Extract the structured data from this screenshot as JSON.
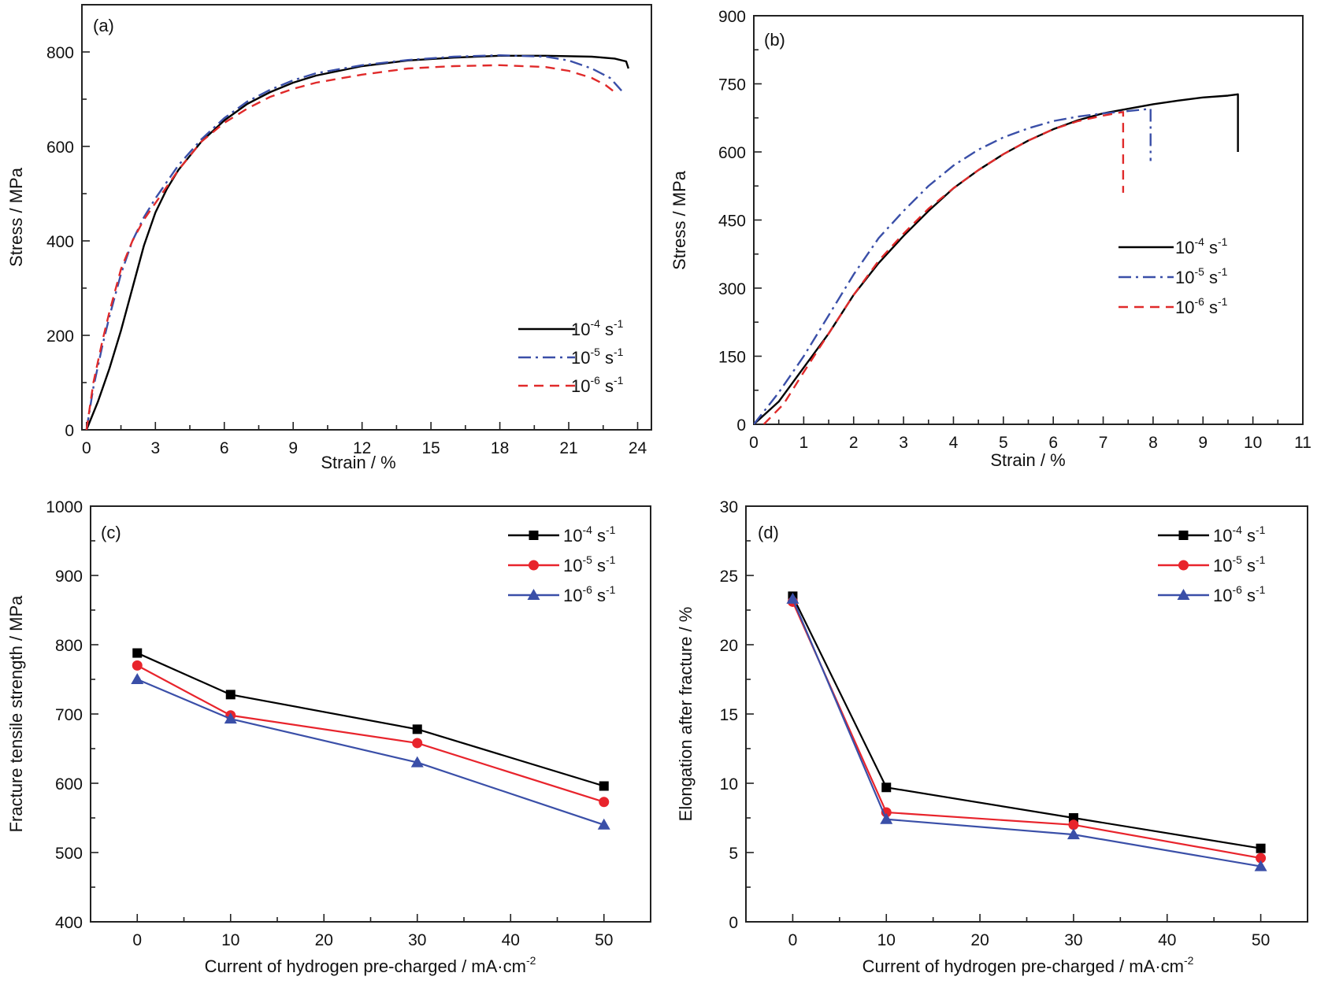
{
  "chart_data": [
    {
      "id": "a",
      "type": "line",
      "panel_label": "(a)",
      "title": "",
      "xlabel": "Strain / %",
      "ylabel": "Stress / MPa",
      "xlim": [
        -0.2,
        24.6
      ],
      "ylim": [
        0,
        900
      ],
      "xticks": [
        0,
        3,
        6,
        9,
        12,
        15,
        18,
        21,
        24
      ],
      "yticks": [
        0,
        200,
        400,
        600,
        800
      ],
      "x_minor_step": 1.5,
      "y_minor_step": 100,
      "grid": false,
      "legend": "bottom-right",
      "series": [
        {
          "name": "10^-4 s^-1",
          "base": "10",
          "exp": "-4",
          "unit": "s",
          "unit_exp": "-1",
          "color": "#000000",
          "dash": "solid",
          "x": [
            0,
            0.5,
            1.0,
            1.5,
            2.0,
            2.5,
            3.0,
            3.5,
            4.0,
            5.0,
            6.0,
            7.0,
            8.0,
            9.0,
            10.0,
            12.0,
            14.0,
            16.0,
            18.0,
            20.0,
            22.0,
            23.0,
            23.5,
            23.6
          ],
          "y": [
            0,
            60,
            130,
            210,
            300,
            390,
            460,
            510,
            550,
            610,
            655,
            690,
            715,
            735,
            750,
            770,
            782,
            788,
            792,
            792,
            790,
            786,
            780,
            765
          ]
        },
        {
          "name": "10^-5 s^-1",
          "base": "10",
          "exp": "-5",
          "unit": "s",
          "unit_exp": "-1",
          "color": "#3a4fa8",
          "dash": "dashdot",
          "x": [
            0,
            0.3,
            0.7,
            1.0,
            1.5,
            2.0,
            2.5,
            3.0,
            4.0,
            5.0,
            6.0,
            7.0,
            8.0,
            9.0,
            10.0,
            12.0,
            14.0,
            16.0,
            18.0,
            20.0,
            21.0,
            22.0,
            22.8,
            23.3
          ],
          "y": [
            0,
            90,
            180,
            240,
            330,
            400,
            450,
            490,
            560,
            615,
            660,
            695,
            720,
            740,
            755,
            772,
            783,
            790,
            793,
            790,
            782,
            765,
            745,
            718
          ]
        },
        {
          "name": "10^-6 s^-1",
          "base": "10",
          "exp": "-6",
          "unit": "s",
          "unit_exp": "-1",
          "color": "#e02a2a",
          "dash": "dashed",
          "x": [
            0,
            0.3,
            0.7,
            1.0,
            1.5,
            2.0,
            2.5,
            3.0,
            4.0,
            5.0,
            6.0,
            7.0,
            8.0,
            9.0,
            10.0,
            12.0,
            14.0,
            16.0,
            18.0,
            20.0,
            21.0,
            22.0,
            22.6,
            23.0
          ],
          "y": [
            0,
            100,
            190,
            250,
            340,
            400,
            445,
            480,
            550,
            610,
            650,
            680,
            705,
            722,
            735,
            752,
            765,
            770,
            772,
            768,
            760,
            745,
            730,
            715
          ]
        }
      ]
    },
    {
      "id": "b",
      "type": "line",
      "panel_label": "(b)",
      "title": "",
      "xlabel": "Strain / %",
      "ylabel": "Stress / MPa",
      "xlim": [
        0,
        11
      ],
      "ylim": [
        0,
        900
      ],
      "xticks": [
        0,
        1,
        2,
        3,
        4,
        5,
        6,
        7,
        8,
        9,
        10,
        11
      ],
      "yticks": [
        0,
        150,
        300,
        450,
        600,
        750,
        900
      ],
      "x_minor_step": 0.5,
      "y_minor_step": 75,
      "grid": false,
      "legend": "center-right",
      "series": [
        {
          "name": "10^-4 s^-1",
          "base": "10",
          "exp": "-4",
          "unit": "s",
          "unit_exp": "-1",
          "color": "#000000",
          "dash": "solid",
          "x": [
            0,
            0.5,
            1.0,
            1.5,
            2.0,
            2.5,
            3.0,
            3.5,
            4.0,
            4.5,
            5.0,
            5.5,
            6.0,
            6.5,
            7.0,
            7.5,
            8.0,
            8.5,
            9.0,
            9.5,
            9.7,
            9.7
          ],
          "y": [
            0,
            50,
            125,
            200,
            285,
            355,
            415,
            470,
            520,
            560,
            595,
            625,
            650,
            670,
            685,
            695,
            705,
            713,
            720,
            724,
            727,
            600
          ]
        },
        {
          "name": "10^-5 s^-1",
          "base": "10",
          "exp": "-5",
          "unit": "s",
          "unit_exp": "-1",
          "color": "#3a4fa8",
          "dash": "dashdot",
          "x": [
            0,
            0.5,
            1.0,
            1.5,
            2.0,
            2.5,
            3.0,
            3.5,
            4.0,
            4.5,
            5.0,
            5.5,
            6.0,
            6.5,
            7.0,
            7.5,
            7.95,
            7.95
          ],
          "y": [
            0,
            70,
            150,
            240,
            330,
            410,
            470,
            525,
            570,
            605,
            632,
            652,
            668,
            678,
            685,
            690,
            695,
            580
          ]
        },
        {
          "name": "10^-6 s^-1",
          "base": "10",
          "exp": "-6",
          "unit": "s",
          "unit_exp": "-1",
          "color": "#e02a2a",
          "dash": "dashed",
          "x": [
            0.2,
            0.6,
            1.0,
            1.5,
            2.0,
            2.5,
            3.0,
            3.5,
            4.0,
            4.5,
            5.0,
            5.5,
            6.0,
            6.5,
            7.0,
            7.4,
            7.4
          ],
          "y": [
            0,
            45,
            115,
            200,
            285,
            360,
            420,
            475,
            520,
            560,
            595,
            625,
            650,
            668,
            680,
            688,
            510
          ]
        }
      ]
    },
    {
      "id": "c",
      "type": "line",
      "panel_label": "(c)",
      "title": "",
      "xlabel": "Current of hydrogen pre-charged / mA·cm",
      "xlabel_sup": "-2",
      "ylabel": "Fracture tensile strength / MPa",
      "xlim": [
        -5,
        55
      ],
      "ylim": [
        400,
        1000
      ],
      "xticks": [
        0,
        10,
        20,
        30,
        40,
        50
      ],
      "yticks": [
        400,
        500,
        600,
        700,
        800,
        900,
        1000
      ],
      "x_minor_step": 5,
      "y_minor_step": 50,
      "grid": false,
      "legend": "top-right",
      "x": [
        0,
        10,
        30,
        50
      ],
      "series": [
        {
          "name": "10^-4 s^-1",
          "base": "10",
          "exp": "-4",
          "unit": "s",
          "unit_exp": "-1",
          "color": "#000000",
          "marker": "square",
          "values": [
            788,
            728,
            678,
            596
          ]
        },
        {
          "name": "10^-5 s^-1",
          "base": "10",
          "exp": "-5",
          "unit": "s",
          "unit_exp": "-1",
          "color": "#e8242c",
          "marker": "circle",
          "values": [
            770,
            698,
            658,
            573
          ]
        },
        {
          "name": "10^-6 s^-1",
          "base": "10",
          "exp": "-6",
          "unit": "s",
          "unit_exp": "-1",
          "color": "#3a4fa8",
          "marker": "triangle",
          "values": [
            750,
            693,
            630,
            540
          ]
        }
      ]
    },
    {
      "id": "d",
      "type": "line",
      "panel_label": "(d)",
      "title": "",
      "xlabel": "Current of hydrogen pre-charged / mA·cm",
      "xlabel_sup": "-2",
      "ylabel": "Elongation after fracture / %",
      "xlim": [
        -5,
        55
      ],
      "ylim": [
        0,
        30
      ],
      "xticks": [
        0,
        10,
        20,
        30,
        40,
        50
      ],
      "yticks": [
        0,
        5,
        10,
        15,
        20,
        25,
        30
      ],
      "x_minor_step": 5,
      "y_minor_step": 2.5,
      "grid": false,
      "legend": "top-right",
      "x": [
        0,
        10,
        30,
        50
      ],
      "series": [
        {
          "name": "10^-4 s^-1",
          "base": "10",
          "exp": "-4",
          "unit": "s",
          "unit_exp": "-1",
          "color": "#000000",
          "marker": "square",
          "values": [
            23.5,
            9.7,
            7.5,
            5.3
          ]
        },
        {
          "name": "10^-5 s^-1",
          "base": "10",
          "exp": "-5",
          "unit": "s",
          "unit_exp": "-1",
          "color": "#e8242c",
          "marker": "circle",
          "values": [
            23.1,
            7.9,
            7.0,
            4.6
          ]
        },
        {
          "name": "10^-6 s^-1",
          "base": "10",
          "exp": "-6",
          "unit": "s",
          "unit_exp": "-1",
          "color": "#3a4fa8",
          "marker": "triangle",
          "values": [
            23.3,
            7.4,
            6.3,
            4.0
          ]
        }
      ]
    }
  ]
}
